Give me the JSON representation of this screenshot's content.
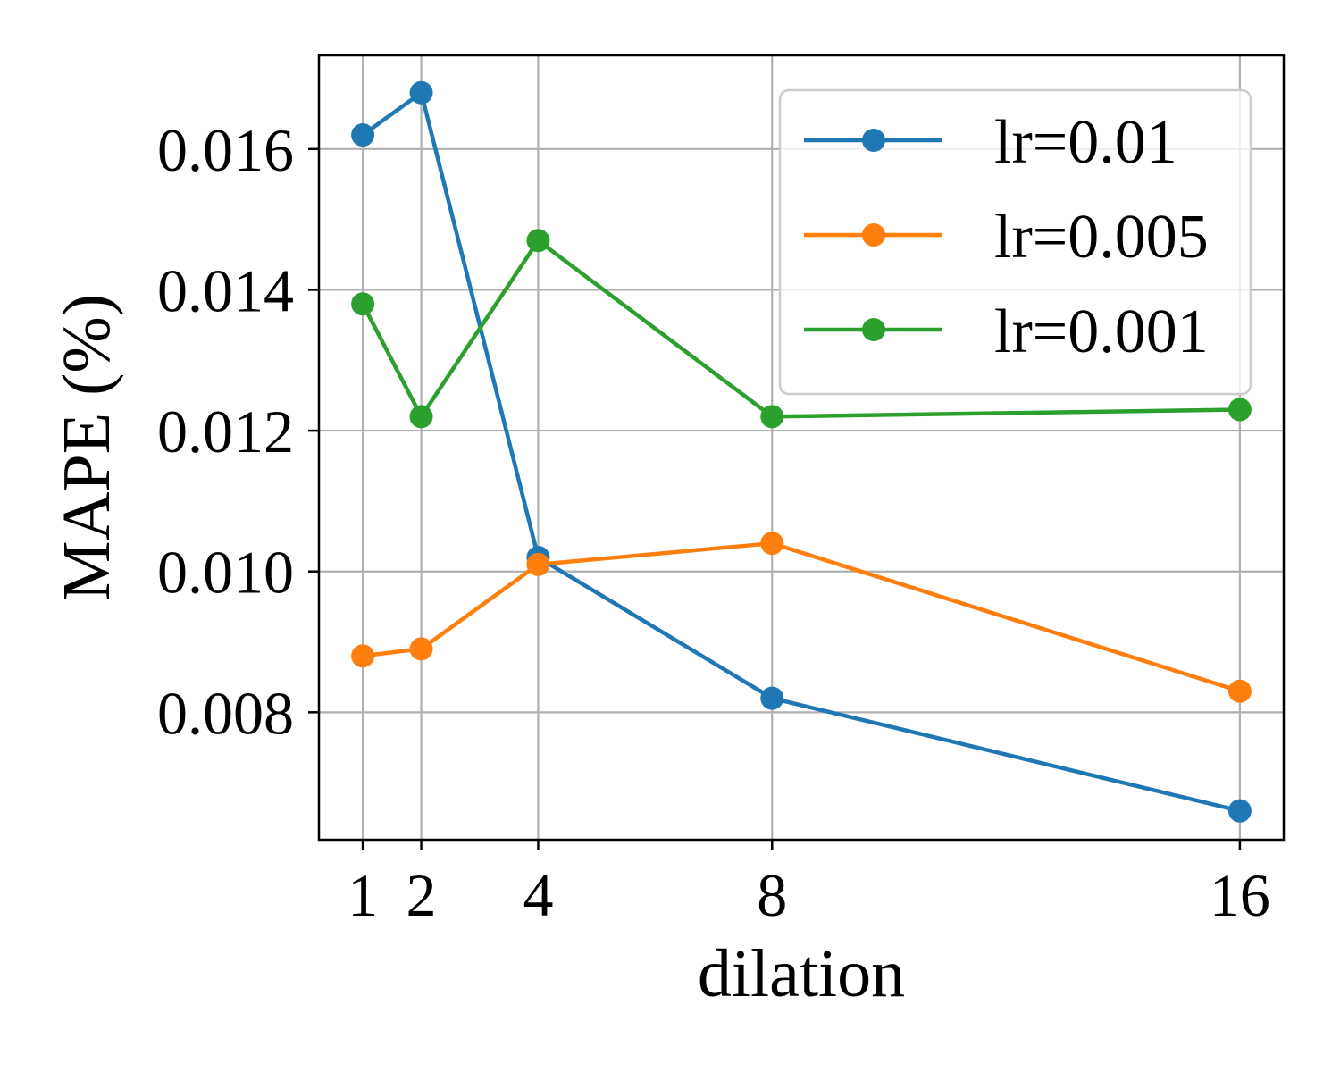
{
  "chart_data": {
    "type": "line",
    "xlabel": "dilation",
    "ylabel": "MAPE (%)",
    "x": [
      1,
      2,
      4,
      8,
      16
    ],
    "xticks": [
      "1",
      "2",
      "4",
      "8",
      "16"
    ],
    "yticks": [
      "0.008",
      "0.010",
      "0.012",
      "0.014",
      "0.016"
    ],
    "xlim": [
      0.25,
      16.75
    ],
    "ylim": [
      0.00619,
      0.01733
    ],
    "grid": true,
    "legend_position": "top-right",
    "series": [
      {
        "name": "lr=0.01",
        "color": "#1f77b4",
        "values": [
          0.0162,
          0.0168,
          0.0102,
          0.0082,
          0.0066
        ]
      },
      {
        "name": "lr=0.005",
        "color": "#ff7f0e",
        "values": [
          0.0088,
          0.0089,
          0.0101,
          0.0104,
          0.0083
        ]
      },
      {
        "name": "lr=0.001",
        "color": "#2ca02c",
        "values": [
          0.0138,
          0.0122,
          0.0147,
          0.0122,
          0.0123
        ]
      }
    ]
  }
}
